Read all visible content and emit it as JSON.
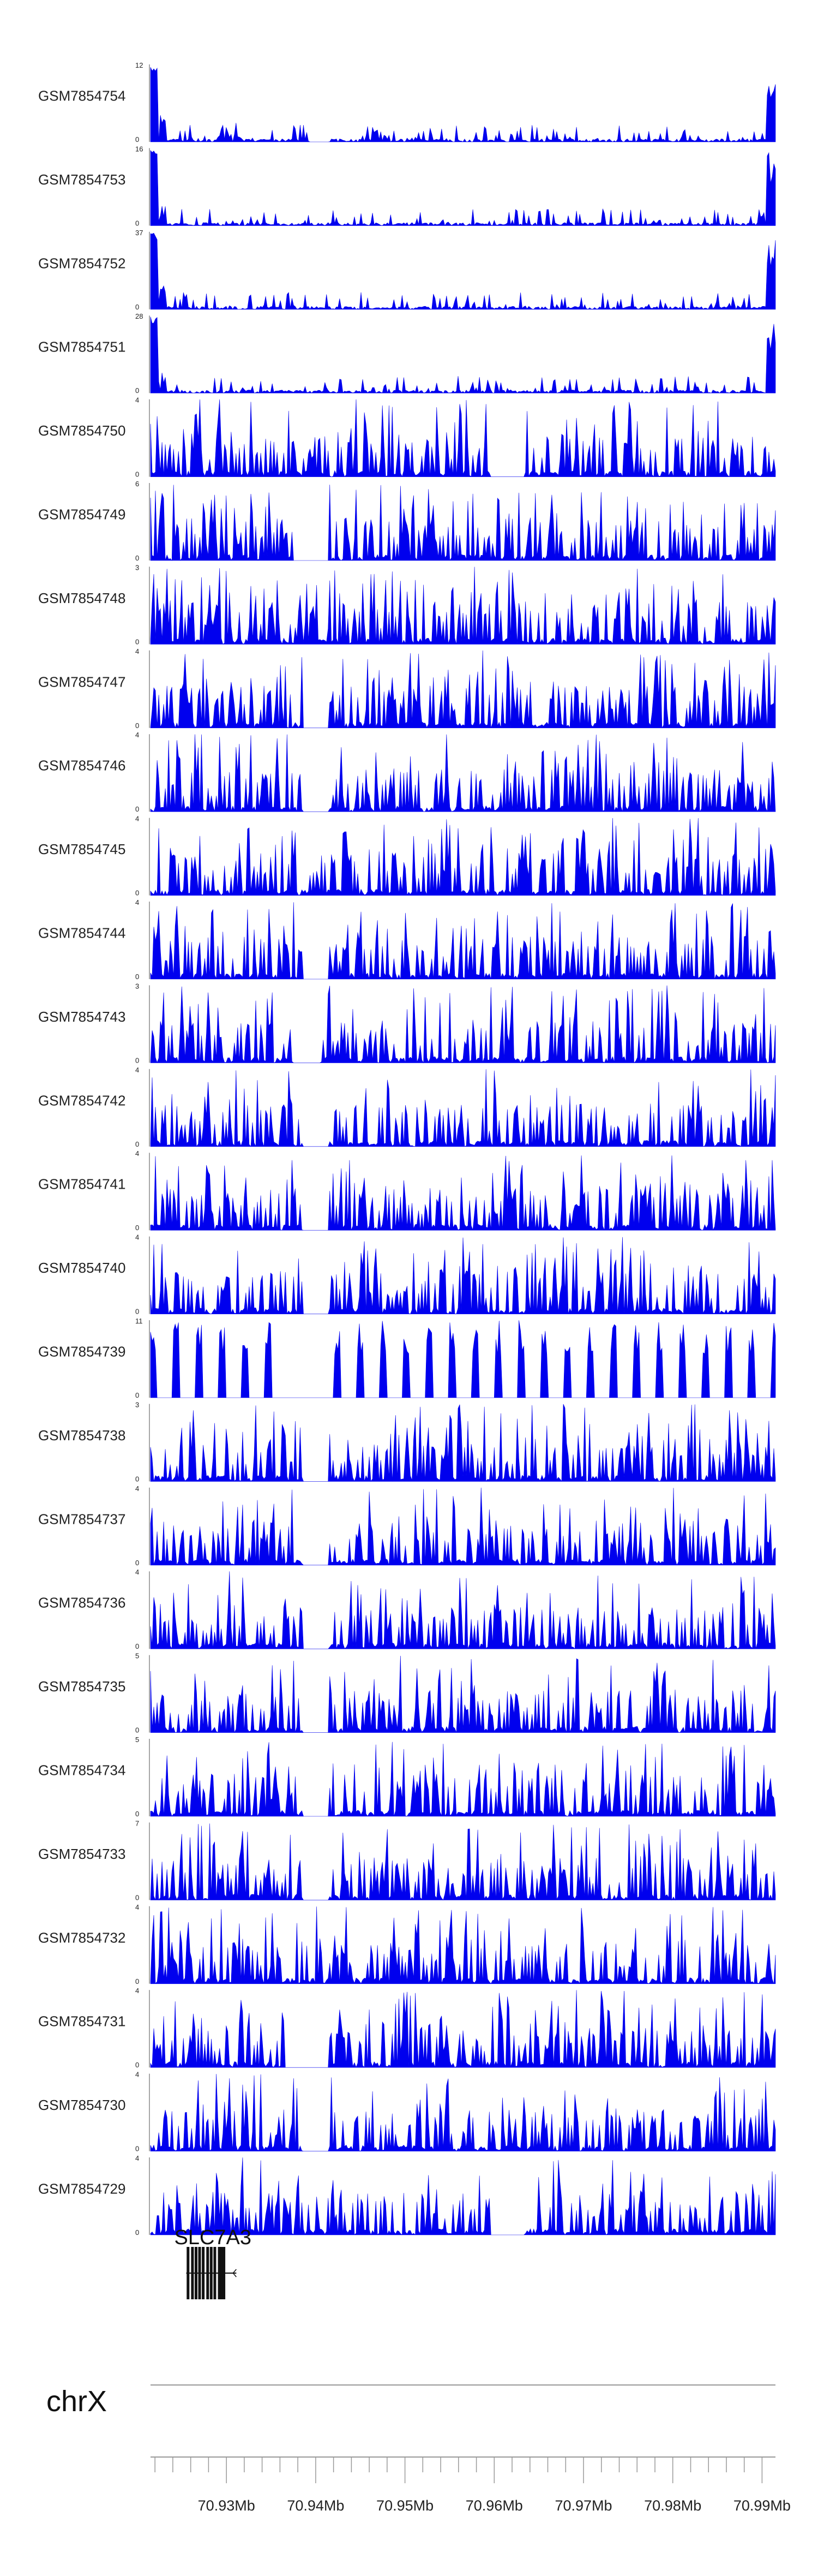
{
  "chart_data": {
    "type": "area",
    "chromosome": "chrX",
    "x_range_mb": [
      70.9215,
      70.9915
    ],
    "x_axis_ticks_mb": [
      70.93,
      70.94,
      70.95,
      70.96,
      70.97,
      70.98,
      70.99
    ],
    "x_axis_tick_labels": [
      "70.93Mb",
      "70.94Mb",
      "70.95Mb",
      "70.96Mb",
      "70.97Mb",
      "70.98Mb",
      "70.99Mb"
    ],
    "fill_color": "#0000ee",
    "tracks": [
      {
        "name": "GSM7854754",
        "ymax": 12,
        "ymin": 0,
        "pattern": "edges",
        "gaps": [
          [
            70.9393,
            70.9415
          ]
        ]
      },
      {
        "name": "GSM7854753",
        "ymax": 16,
        "ymin": 0,
        "pattern": "edges",
        "gaps": []
      },
      {
        "name": "GSM7854752",
        "ymax": 37,
        "ymin": 0,
        "pattern": "edges",
        "gaps": []
      },
      {
        "name": "GSM7854751",
        "ymax": 28,
        "ymin": 0,
        "pattern": "edges",
        "gaps": []
      },
      {
        "name": "GSM7854750",
        "ymax": 4,
        "ymin": 0,
        "pattern": "dense",
        "gaps": [
          [
            70.9595,
            70.9635
          ]
        ]
      },
      {
        "name": "GSM7854749",
        "ymax": 6,
        "ymin": 0,
        "pattern": "dense",
        "gaps": [
          [
            70.9375,
            70.9415
          ]
        ]
      },
      {
        "name": "GSM7854748",
        "ymax": 3,
        "ymin": 0,
        "pattern": "dense",
        "gaps": []
      },
      {
        "name": "GSM7854747",
        "ymax": 4,
        "ymin": 0,
        "pattern": "dense",
        "gaps": [
          [
            70.9385,
            70.9415
          ]
        ]
      },
      {
        "name": "GSM7854746",
        "ymax": 4,
        "ymin": 0,
        "pattern": "dense",
        "gaps": [
          [
            70.9385,
            70.9415
          ]
        ]
      },
      {
        "name": "GSM7854745",
        "ymax": 4,
        "ymin": 0,
        "pattern": "dense",
        "gaps": []
      },
      {
        "name": "GSM7854744",
        "ymax": 4,
        "ymin": 0,
        "pattern": "dense",
        "gaps": [
          [
            70.9385,
            70.9415
          ]
        ]
      },
      {
        "name": "GSM7854743",
        "ymax": 3,
        "ymin": 0,
        "pattern": "dense",
        "gaps": [
          [
            70.9375,
            70.9405
          ]
        ]
      },
      {
        "name": "GSM7854742",
        "ymax": 4,
        "ymin": 0,
        "pattern": "dense",
        "gaps": [
          [
            70.9385,
            70.9415
          ]
        ]
      },
      {
        "name": "GSM7854741",
        "ymax": 4,
        "ymin": 0,
        "pattern": "dense",
        "gaps": [
          [
            70.9385,
            70.9415
          ]
        ]
      },
      {
        "name": "GSM7854740",
        "ymax": 4,
        "ymin": 0,
        "pattern": "dense",
        "gaps": [
          [
            70.9385,
            70.9415
          ]
        ]
      },
      {
        "name": "GSM7854739",
        "ymax": 11,
        "ymin": 0,
        "pattern": "sparse",
        "gaps": [
          [
            70.9365,
            70.9415
          ]
        ]
      },
      {
        "name": "GSM7854738",
        "ymax": 3,
        "ymin": 0,
        "pattern": "dense",
        "gaps": [
          [
            70.9385,
            70.9415
          ]
        ]
      },
      {
        "name": "GSM7854737",
        "ymax": 4,
        "ymin": 0,
        "pattern": "dense",
        "gaps": [
          [
            70.9385,
            70.9415
          ]
        ]
      },
      {
        "name": "GSM7854736",
        "ymax": 4,
        "ymin": 0,
        "pattern": "dense",
        "gaps": [
          [
            70.9385,
            70.9415
          ]
        ]
      },
      {
        "name": "GSM7854735",
        "ymax": 5,
        "ymin": 0,
        "pattern": "dense",
        "gaps": [
          [
            70.9385,
            70.9415
          ]
        ]
      },
      {
        "name": "GSM7854734",
        "ymax": 5,
        "ymin": 0,
        "pattern": "dense",
        "gaps": [
          [
            70.9385,
            70.9415
          ]
        ]
      },
      {
        "name": "GSM7854733",
        "ymax": 7,
        "ymin": 0,
        "pattern": "dense",
        "gaps": [
          [
            70.9385,
            70.9415
          ]
        ]
      },
      {
        "name": "GSM7854732",
        "ymax": 4,
        "ymin": 0,
        "pattern": "dense",
        "gaps": []
      },
      {
        "name": "GSM7854731",
        "ymax": 4,
        "ymin": 0,
        "pattern": "dense",
        "gaps": [
          [
            70.9365,
            70.9415
          ]
        ]
      },
      {
        "name": "GSM7854730",
        "ymax": 4,
        "ymin": 0,
        "pattern": "dense",
        "gaps": [
          [
            70.9385,
            70.9415
          ]
        ]
      },
      {
        "name": "GSM7854729",
        "ymax": 4,
        "ymin": 0,
        "pattern": "dense",
        "gaps": [
          [
            70.9595,
            70.9635
          ]
        ]
      }
    ],
    "gene": {
      "name": "SLC7A3",
      "start_mb": 70.9255,
      "end_mb": 70.9305,
      "exons_mb": [
        70.9257,
        70.9262,
        70.9266,
        70.927,
        70.9274,
        70.9279,
        70.9283,
        70.9287,
        70.9292,
        70.9296
      ]
    }
  }
}
